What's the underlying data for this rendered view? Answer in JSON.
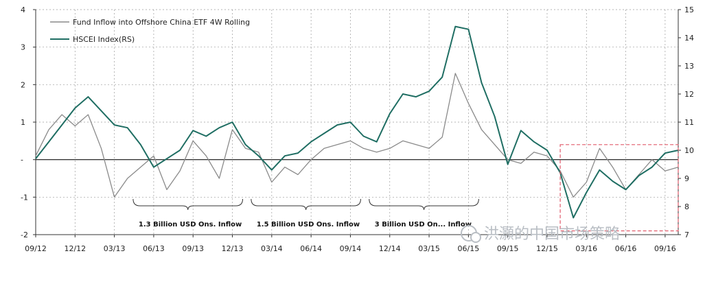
{
  "watermark": "洪灝的中国市场策略",
  "chart_data": {
    "type": "line",
    "title": "",
    "legend": [
      "Fund Inflow into Offshore China ETF 4W Rolling",
      "HSCEI Index(RS)"
    ],
    "legend_placement": "top-left",
    "grid": true,
    "x_ticks": [
      "09/12",
      "12/12",
      "03/13",
      "06/13",
      "09/13",
      "12/13",
      "03/14",
      "06/14",
      "09/14",
      "12/14",
      "03/15",
      "06/15",
      "09/15",
      "12/15",
      "03/16",
      "06/16",
      "09/16"
    ],
    "x_range": [
      "09/12",
      "10/16"
    ],
    "y_left_ticks": [
      "-2",
      "-1",
      "-",
      "1",
      "2",
      "3",
      "4"
    ],
    "y_left_range": [
      -2,
      4
    ],
    "y_right_ticks": [
      "7",
      "8",
      "9",
      "10",
      "11",
      "12",
      "13",
      "14",
      "15"
    ],
    "y_right_range": [
      7,
      15
    ],
    "series": [
      {
        "name": "Fund Inflow into Offshore China ETF 4W Rolling",
        "axis": "left",
        "color": "#8a8a8a",
        "x": [
          "09/12",
          "10/12",
          "11/12",
          "12/12",
          "01/13",
          "02/13",
          "03/13",
          "04/13",
          "05/13",
          "06/13",
          "07/13",
          "08/13",
          "09/13",
          "10/13",
          "11/13",
          "12/13",
          "01/14",
          "02/14",
          "03/14",
          "04/14",
          "05/14",
          "06/14",
          "07/14",
          "08/14",
          "09/14",
          "10/14",
          "11/14",
          "12/14",
          "01/15",
          "02/15",
          "03/15",
          "04/15",
          "05/15",
          "06/15",
          "07/15",
          "08/15",
          "09/15",
          "10/15",
          "11/15",
          "12/15",
          "01/16",
          "02/16",
          "03/16",
          "04/16",
          "05/16",
          "06/16",
          "07/16",
          "08/16",
          "09/16",
          "10/16"
        ],
        "values": [
          0.1,
          0.8,
          1.2,
          0.9,
          1.2,
          0.3,
          -1.0,
          -0.5,
          -0.2,
          0.1,
          -0.8,
          -0.3,
          0.5,
          0.1,
          -0.5,
          0.8,
          0.3,
          0.2,
          -0.6,
          -0.2,
          -0.4,
          0.0,
          0.3,
          0.4,
          0.5,
          0.3,
          0.2,
          0.3,
          0.5,
          0.4,
          0.3,
          0.6,
          2.3,
          1.5,
          0.8,
          0.4,
          0.0,
          -0.1,
          0.2,
          0.1,
          -0.3,
          -1.0,
          -0.6,
          0.3,
          -0.2,
          -0.8,
          -0.4,
          0.0,
          -0.3,
          -0.2
        ]
      },
      {
        "name": "HSCEI Index(RS)",
        "axis": "right",
        "color": "#1f6e63",
        "x": [
          "09/12",
          "10/12",
          "11/12",
          "12/12",
          "01/13",
          "02/13",
          "03/13",
          "04/13",
          "05/13",
          "06/13",
          "07/13",
          "08/13",
          "09/13",
          "10/13",
          "11/13",
          "12/13",
          "01/14",
          "02/14",
          "03/14",
          "04/14",
          "05/14",
          "06/14",
          "07/14",
          "08/14",
          "09/14",
          "10/14",
          "11/14",
          "12/14",
          "01/15",
          "02/15",
          "03/15",
          "04/15",
          "05/15",
          "06/15",
          "07/15",
          "08/15",
          "09/15",
          "10/15",
          "11/15",
          "12/15",
          "01/16",
          "02/16",
          "03/16",
          "04/16",
          "05/16",
          "06/16",
          "07/16",
          "08/16",
          "09/16",
          "10/16"
        ],
        "values": [
          9.7,
          10.3,
          10.9,
          11.5,
          11.9,
          11.4,
          10.9,
          10.8,
          10.2,
          9.4,
          9.7,
          10.0,
          10.7,
          10.5,
          10.8,
          11.0,
          10.2,
          9.8,
          9.3,
          9.8,
          9.9,
          10.3,
          10.6,
          10.9,
          11.0,
          10.5,
          10.3,
          11.3,
          12.0,
          11.9,
          12.1,
          12.6,
          14.4,
          14.3,
          12.4,
          11.2,
          9.5,
          10.7,
          10.3,
          10.0,
          9.2,
          7.6,
          8.5,
          9.3,
          8.9,
          8.6,
          9.1,
          9.4,
          9.9,
          10.0
        ]
      }
    ],
    "annotations": [
      {
        "text": "1.3 Billion USD Ons. Inflow",
        "from": "06/13",
        "to": "12/13"
      },
      {
        "text": "1.5 Billion USD Ons. Inflow",
        "from": "03/14",
        "to": "09/14"
      },
      {
        "text": "3 Billion USD On... Inflow",
        "from": "12/14",
        "to": "06/15"
      }
    ],
    "highlight_box": {
      "from": "01/16",
      "to": "10/16",
      "y_left_from": -1.9,
      "y_left_to": 0.4,
      "color": "#e05a6a",
      "style": "dashed"
    }
  }
}
